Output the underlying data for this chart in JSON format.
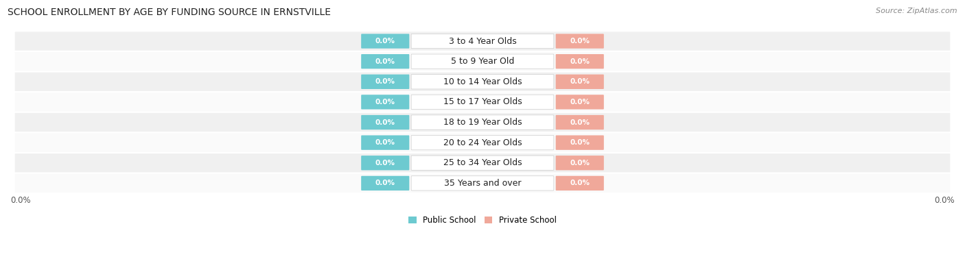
{
  "title": "SCHOOL ENROLLMENT BY AGE BY FUNDING SOURCE IN ERNSTVILLE",
  "source": "Source: ZipAtlas.com",
  "categories": [
    "3 to 4 Year Olds",
    "5 to 9 Year Old",
    "10 to 14 Year Olds",
    "15 to 17 Year Olds",
    "18 to 19 Year Olds",
    "20 to 24 Year Olds",
    "25 to 34 Year Olds",
    "35 Years and over"
  ],
  "public_values": [
    0.0,
    0.0,
    0.0,
    0.0,
    0.0,
    0.0,
    0.0,
    0.0
  ],
  "private_values": [
    0.0,
    0.0,
    0.0,
    0.0,
    0.0,
    0.0,
    0.0,
    0.0
  ],
  "public_color": "#6dcad0",
  "private_color": "#f0a89a",
  "label_public": "Public School",
  "label_private": "Private School",
  "bg_row_even": "#f0f0f0",
  "bg_row_odd": "#fafafa",
  "title_fontsize": 10,
  "source_fontsize": 8,
  "cat_fontsize": 9,
  "value_fontsize": 7.5,
  "axis_label": "0.0%"
}
